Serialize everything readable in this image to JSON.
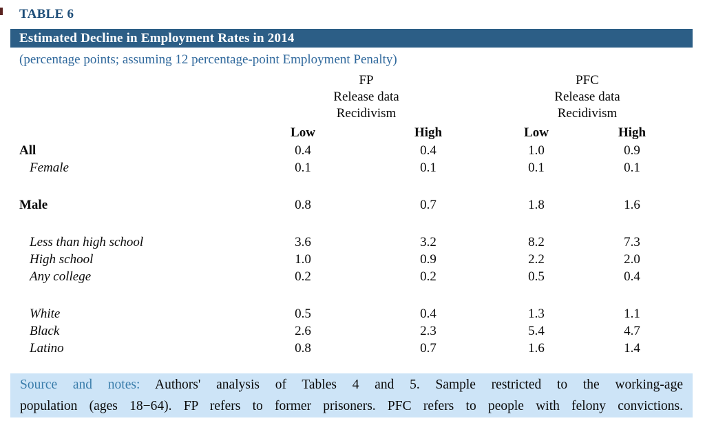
{
  "header": {
    "table_label": "TABLE 6",
    "title": "Estimated Decline in Employment Rates in 2014",
    "subtitle": "(percentage points; assuming 12 percentage-point Employment Penalty)"
  },
  "table": {
    "groups": [
      {
        "name": "FP",
        "sub_rows": [
          "Release data",
          "Recidivism"
        ]
      },
      {
        "name": "PFC",
        "sub_rows": [
          "Release data",
          "Recidivism"
        ]
      }
    ],
    "col_headers": [
      "Low",
      "High",
      "Low",
      "High"
    ],
    "rows": [
      {
        "label": "All",
        "style": "bold",
        "values": [
          "0.4",
          "0.4",
          "1.0",
          "0.9"
        ]
      },
      {
        "label": "Female",
        "style": "italic",
        "values": [
          "0.1",
          "0.1",
          "0.1",
          "0.1"
        ]
      },
      {
        "spacer": true
      },
      {
        "label": "Male",
        "style": "bold",
        "values": [
          "0.8",
          "0.7",
          "1.8",
          "1.6"
        ]
      },
      {
        "spacer": true
      },
      {
        "label": "Less than high school",
        "style": "italic",
        "values": [
          "3.6",
          "3.2",
          "8.2",
          "7.3"
        ]
      },
      {
        "label": "High school",
        "style": "italic",
        "values": [
          "1.0",
          "0.9",
          "2.2",
          "2.0"
        ]
      },
      {
        "label": "Any college",
        "style": "italic",
        "values": [
          "0.2",
          "0.2",
          "0.5",
          "0.4"
        ]
      },
      {
        "spacer": true
      },
      {
        "label": "White",
        "style": "italic",
        "values": [
          "0.5",
          "0.4",
          "1.3",
          "1.1"
        ]
      },
      {
        "label": "Black",
        "style": "italic",
        "values": [
          "2.6",
          "2.3",
          "5.4",
          "4.7"
        ]
      },
      {
        "label": "Latino",
        "style": "italic",
        "values": [
          "0.8",
          "0.7",
          "1.6",
          "1.4"
        ]
      }
    ]
  },
  "footer": {
    "label": "Source and notes:",
    "line1": "Authors' analysis of Tables 4 and 5. Sample restricted to the working-age",
    "line2": "population (ages 18−64). FP refers to former prisoners. PFC refers to people with felony convictions."
  },
  "colors": {
    "title_bar_bg": "#2c5e86",
    "table_label_text": "#1e4e79",
    "subtitle_text": "#2f689c",
    "footer_bg": "#cde4f7",
    "footer_label_text": "#3a7dab"
  },
  "chart_data": {
    "type": "table",
    "title": "Estimated Decline in Employment Rates in 2014",
    "subtitle": "(percentage points; assuming 12 percentage-point Employment Penalty)",
    "column_groups": [
      {
        "group": "FP",
        "sub_header": [
          "Release data",
          "Recidivism"
        ],
        "columns": [
          "Low",
          "High"
        ]
      },
      {
        "group": "PFC",
        "sub_header": [
          "Release data",
          "Recidivism"
        ],
        "columns": [
          "Low",
          "High"
        ]
      }
    ],
    "columns": [
      "FP Low",
      "FP High",
      "PFC Low",
      "PFC High"
    ],
    "rows": [
      {
        "category": "All",
        "values": [
          0.4,
          0.4,
          1.0,
          0.9
        ]
      },
      {
        "category": "Female",
        "values": [
          0.1,
          0.1,
          0.1,
          0.1
        ]
      },
      {
        "category": "Male",
        "values": [
          0.8,
          0.7,
          1.8,
          1.6
        ]
      },
      {
        "category": "Less than high school",
        "values": [
          3.6,
          3.2,
          8.2,
          7.3
        ]
      },
      {
        "category": "High school",
        "values": [
          1.0,
          0.9,
          2.2,
          2.0
        ]
      },
      {
        "category": "Any college",
        "values": [
          0.2,
          0.2,
          0.5,
          0.4
        ]
      },
      {
        "category": "White",
        "values": [
          0.5,
          0.4,
          1.3,
          1.1
        ]
      },
      {
        "category": "Black",
        "values": [
          2.6,
          2.3,
          5.4,
          4.7
        ]
      },
      {
        "category": "Latino",
        "values": [
          0.8,
          0.7,
          1.6,
          1.4
        ]
      }
    ],
    "notes": "Source and notes: Authors' analysis of Tables 4 and 5. Sample restricted to the working-age population (ages 18−64). FP refers to former prisoners. PFC refers to people with felony convictions."
  }
}
